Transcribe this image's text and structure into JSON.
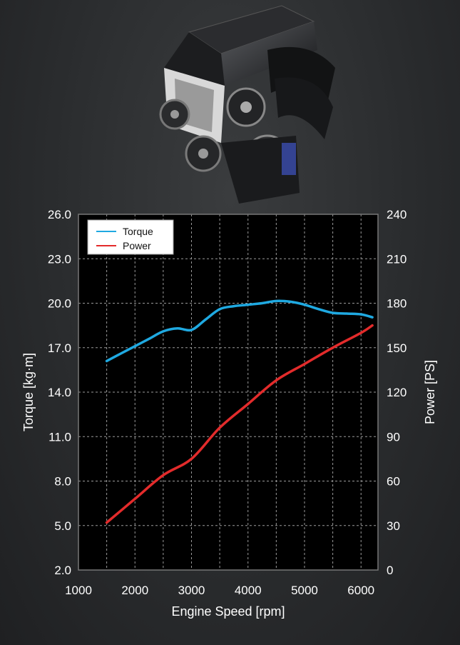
{
  "chart_data": {
    "type": "line",
    "xlabel": "Engine Speed [rpm]",
    "ylabel_left": "Torque [kg·m]",
    "ylabel_right": "Power [PS]",
    "xlim": [
      1000,
      6300
    ],
    "ylim_left": [
      2.0,
      26.0
    ],
    "ylim_right": [
      0,
      240
    ],
    "x_ticks": [
      "1000",
      "2000",
      "3000",
      "4000",
      "5000",
      "6000"
    ],
    "y_left_ticks": [
      "2.0",
      "5.0",
      "8.0",
      "11.0",
      "14.0",
      "17.0",
      "20.0",
      "23.0",
      "26.0"
    ],
    "y_right_ticks": [
      "0",
      "30",
      "60",
      "90",
      "120",
      "150",
      "180",
      "210",
      "240"
    ],
    "grid": true,
    "legend_position": "top-left",
    "series": [
      {
        "name": "Torque",
        "axis": "left",
        "color": "#1fa9e1",
        "x": [
          1500,
          1750,
          2000,
          2250,
          2500,
          2750,
          3000,
          3250,
          3500,
          3750,
          4000,
          4250,
          4500,
          4750,
          5000,
          5250,
          5500,
          5750,
          6000,
          6200
        ],
        "y": [
          16.1,
          16.6,
          17.1,
          17.6,
          18.1,
          18.3,
          18.2,
          18.9,
          19.6,
          19.8,
          19.9,
          20.0,
          20.15,
          20.1,
          19.9,
          19.6,
          19.35,
          19.3,
          19.25,
          19.05
        ]
      },
      {
        "name": "Power",
        "axis": "right",
        "color": "#e32b2b",
        "x": [
          1500,
          2000,
          2500,
          3000,
          3500,
          4000,
          4500,
          5000,
          5500,
          6000,
          6200
        ],
        "y": [
          32,
          48,
          64,
          75,
          96,
          112,
          128,
          139,
          150,
          160,
          165
        ]
      }
    ]
  }
}
